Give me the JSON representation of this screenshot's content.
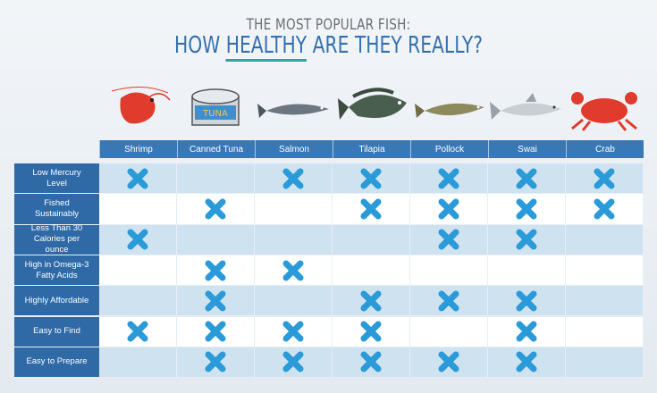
{
  "header": {
    "kicker": "THE MOST POPULAR FISH:",
    "title_before": "HOW",
    "title_emphasis": "HEALTHY",
    "title_after": "ARE THEY REALLY?"
  },
  "can_label": "TUNA",
  "columns": [
    "Shrimp",
    "Canned Tuna",
    "Salmon",
    "Tilapia",
    "Pollock",
    "Swai",
    "Crab"
  ],
  "rows": [
    {
      "label": "Low Mercury Level",
      "marks": [
        true,
        false,
        true,
        true,
        true,
        true,
        true
      ]
    },
    {
      "label": "Fished Sustainably",
      "marks": [
        false,
        true,
        false,
        true,
        true,
        true,
        true
      ]
    },
    {
      "label": "Less Than 30 Calories per ounce",
      "marks": [
        true,
        false,
        false,
        false,
        true,
        true,
        false
      ]
    },
    {
      "label": "High in Omega-3 Fatty Acids",
      "marks": [
        false,
        true,
        true,
        false,
        false,
        false,
        false
      ]
    },
    {
      "label": "Highly Affordable",
      "marks": [
        false,
        true,
        false,
        true,
        true,
        true,
        false
      ]
    },
    {
      "label": "Easy to Find",
      "marks": [
        true,
        true,
        true,
        true,
        false,
        true,
        false
      ]
    },
    {
      "label": "Easy to Prepare",
      "marks": [
        false,
        true,
        true,
        true,
        true,
        true,
        false
      ]
    }
  ]
}
